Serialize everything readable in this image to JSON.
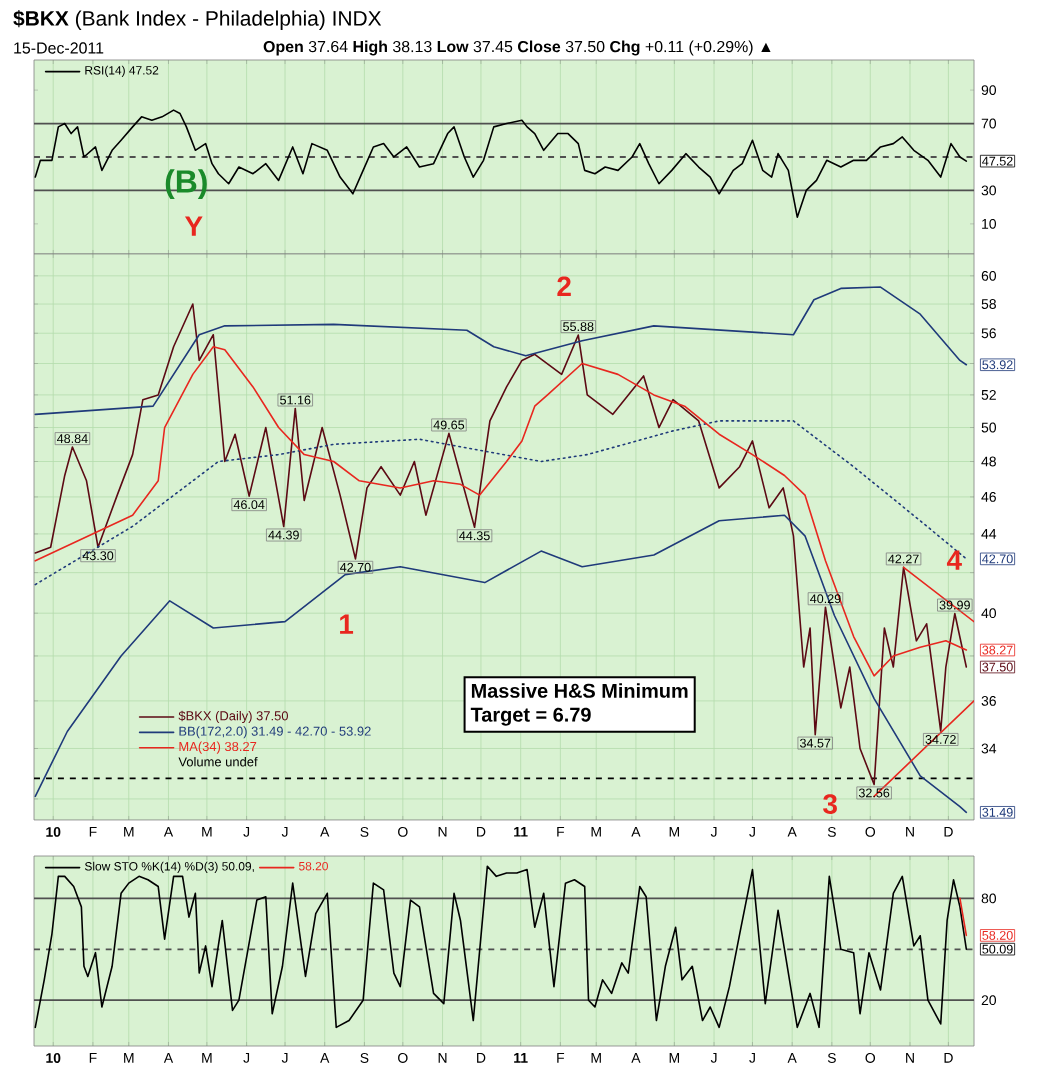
{
  "chart_data": [
    {
      "type": "line",
      "title": "**$BKX** (Bank Index - Philadelphia) INDX",
      "subtitle": "15-Dec-2011",
      "grid": "x",
      "legend": "top left",
      "tick_labels": "y",
      "xlim": [
        "2009-12-17",
        "2011-12-21"
      ],
      "ylim": [
        -8,
        108
      ],
      "xticks": [
        {
          "value": "2010-01-01",
          "label": null
        },
        {
          "value": "2010-02-01",
          "label": null
        },
        {
          "value": "2010-03-01",
          "label": null
        },
        {
          "value": "2010-04-01",
          "label": null
        },
        {
          "value": "2010-05-01",
          "label": null
        },
        {
          "value": "2010-06-01",
          "label": null
        },
        {
          "value": "2010-07-01",
          "label": null
        },
        {
          "value": "2010-08-01",
          "label": null
        },
        {
          "value": "2010-09-01",
          "label": null
        },
        {
          "value": "2010-10-01",
          "label": null
        },
        {
          "value": "2010-11-01",
          "label": null
        },
        {
          "value": "2010-12-01",
          "label": null
        },
        {
          "value": "2011-01-01",
          "label": null
        },
        {
          "value": "2011-02-01",
          "label": null
        },
        {
          "value": "2011-03-01",
          "label": null
        },
        {
          "value": "2011-04-01",
          "label": null
        },
        {
          "value": "2011-05-01",
          "label": null
        },
        {
          "value": "2011-06-01",
          "label": null
        },
        {
          "value": "2011-07-01",
          "label": null
        },
        {
          "value": "2011-08-01",
          "label": null
        },
        {
          "value": "2011-09-01",
          "label": null
        },
        {
          "value": "2011-10-01",
          "label": null
        },
        {
          "value": "2011-11-01",
          "label": null
        },
        {
          "value": "2011-12-01",
          "label": null
        }
      ],
      "yticks": [
        10,
        30,
        70,
        90
      ],
      "x": [
        "2009-12-18",
        "2009-12-22",
        "2009-12-31",
        "2010-01-05",
        "2010-01-10",
        "2010-01-15",
        "2010-01-20",
        "2010-01-25",
        "2010-02-03",
        "2010-02-08",
        "2010-02-16",
        "2010-02-23",
        "2010-03-04",
        "2010-03-11",
        "2010-03-19",
        "2010-03-27",
        "2010-04-05",
        "2010-04-10",
        "2010-04-15",
        "2010-04-22",
        "2010-04-30",
        "2010-05-05",
        "2010-05-10",
        "2010-05-18",
        "2010-05-26",
        "2010-06-06",
        "2010-06-16",
        "2010-06-26",
        "2010-07-07",
        "2010-07-15",
        "2010-07-22",
        "2010-08-03",
        "2010-08-13",
        "2010-08-23",
        "2010-08-31",
        "2010-09-08",
        "2010-09-16",
        "2010-09-24",
        "2010-10-04",
        "2010-10-14",
        "2010-10-25",
        "2010-11-05",
        "2010-11-10",
        "2010-11-18",
        "2010-11-25",
        "2010-12-03",
        "2010-12-11",
        "2010-12-21",
        "2011-01-02",
        "2011-01-06",
        "2011-01-12",
        "2011-01-19",
        "2011-01-30",
        "2011-02-07",
        "2011-02-15",
        "2011-02-20",
        "2011-02-28",
        "2011-03-08",
        "2011-03-18",
        "2011-03-29",
        "2011-04-04",
        "2011-04-11",
        "2011-04-19",
        "2011-04-29",
        "2011-05-10",
        "2011-05-20",
        "2011-05-29",
        "2011-06-05",
        "2011-06-16",
        "2011-06-23",
        "2011-07-01",
        "2011-07-09",
        "2011-07-16",
        "2011-07-21",
        "2011-07-29",
        "2011-08-05",
        "2011-08-12",
        "2011-08-20",
        "2011-08-28",
        "2011-09-08",
        "2011-09-18",
        "2011-09-28",
        "2011-10-09",
        "2011-10-19",
        "2011-10-26",
        "2011-11-04",
        "2011-11-15",
        "2011-11-25",
        "2011-12-03",
        "2011-12-10",
        "2011-12-15"
      ],
      "series": [
        {
          "name": "RSI(14) 47.52",
          "color": "#000000",
          "values": [
            38,
            48,
            48,
            68,
            70,
            64,
            68,
            50,
            56,
            42,
            54,
            60,
            68,
            74,
            72,
            74,
            78,
            76,
            68,
            54,
            58,
            46,
            40,
            34,
            44,
            40,
            46,
            36,
            56,
            40,
            58,
            54,
            38,
            28,
            42,
            56,
            58,
            50,
            56,
            44,
            46,
            64,
            68,
            50,
            38,
            48,
            68,
            70,
            72,
            68,
            64,
            54,
            64,
            64,
            58,
            42,
            40,
            44,
            42,
            50,
            58,
            46,
            34,
            42,
            52,
            44,
            38,
            28,
            42,
            46,
            60,
            42,
            38,
            52,
            42,
            14,
            30,
            36,
            48,
            44,
            48,
            48,
            56,
            58,
            62,
            54,
            48,
            38,
            58,
            50,
            47.52
          ],
          "value_labels": [
            null,
            null,
            null,
            null,
            null,
            null,
            null,
            null,
            null,
            null,
            null,
            null,
            null,
            null,
            null,
            null,
            null,
            null,
            null,
            null,
            null,
            null,
            null,
            null,
            null,
            null,
            null,
            null,
            null,
            null,
            null,
            null,
            null,
            null,
            null,
            null,
            null,
            null,
            null,
            null,
            null,
            null,
            null,
            null,
            null,
            null,
            null,
            null,
            null,
            null,
            null,
            null,
            null,
            null,
            null,
            null,
            null,
            null,
            null,
            null,
            null,
            null,
            null,
            null,
            null,
            null,
            null,
            null,
            null,
            null,
            null,
            null,
            null,
            null,
            null,
            null,
            null,
            null,
            null,
            null,
            null,
            null,
            null,
            null,
            null,
            null,
            null,
            null,
            null,
            null,
            "47.52"
          ]
        }
      ],
      "ref_lines": [
        {
          "axis": "y",
          "value": 70,
          "color": "#505050",
          "line_style": "solid"
        },
        {
          "axis": "y",
          "value": 30,
          "color": "#505050",
          "line_style": "solid"
        },
        {
          "axis": "y",
          "value": 50,
          "color": "#505050",
          "line_style": "dashed"
        }
      ],
      "annotations": [
        "**Open** 37.64 **High** 38.13 **Low** 37.45 **Close** 37.50 **Chg** +0.11 (+0.29%) ▲",
        "(B)",
        "Y"
      ]
    },
    {
      "type": "line",
      "log": "y",
      "grid": true,
      "legend": "bottom left",
      "xlim": [
        "2009-12-17",
        "2011-12-21"
      ],
      "ylim": [
        31.2,
        61.6
      ],
      "xticks": [
        {
          "value": "2010-01-01",
          "label": "10"
        },
        {
          "value": "2010-02-01",
          "label": "F"
        },
        {
          "value": "2010-03-01",
          "label": "M"
        },
        {
          "value": "2010-04-01",
          "label": "A"
        },
        {
          "value": "2010-05-01",
          "label": "M"
        },
        {
          "value": "2010-06-01",
          "label": "J"
        },
        {
          "value": "2010-07-01",
          "label": "J"
        },
        {
          "value": "2010-08-01",
          "label": "A"
        },
        {
          "value": "2010-09-01",
          "label": "S"
        },
        {
          "value": "2010-10-01",
          "label": "O"
        },
        {
          "value": "2010-11-01",
          "label": "N"
        },
        {
          "value": "2010-12-01",
          "label": "D"
        },
        {
          "value": "2011-01-01",
          "label": "11"
        },
        {
          "value": "2011-02-01",
          "label": "F"
        },
        {
          "value": "2011-03-01",
          "label": "M"
        },
        {
          "value": "2011-04-01",
          "label": "A"
        },
        {
          "value": "2011-05-01",
          "label": "M"
        },
        {
          "value": "2011-06-01",
          "label": "J"
        },
        {
          "value": "2011-07-01",
          "label": "J"
        },
        {
          "value": "2011-08-01",
          "label": "A"
        },
        {
          "value": "2011-09-01",
          "label": "S"
        },
        {
          "value": "2011-10-01",
          "label": "O"
        },
        {
          "value": "2011-11-01",
          "label": "N"
        },
        {
          "value": "2011-12-01",
          "label": "D"
        }
      ],
      "yticks": [
        {
          "value": 32,
          "label": null
        },
        34,
        36,
        {
          "value": 38,
          "label": null
        },
        40,
        {
          "value": 42,
          "label": null
        },
        44,
        46,
        48,
        50,
        52,
        {
          "value": 54,
          "label": null
        },
        56,
        58,
        60
      ],
      "series": [
        {
          "name": "$BKX (Daily) 37.50",
          "color": "#5c0a14",
          "x": [
            "2009-12-18",
            "2009-12-30",
            "2010-01-10",
            "2010-01-16",
            "2010-01-27",
            "2010-02-05",
            "2010-02-20",
            "2010-03-04",
            "2010-03-12",
            "2010-03-24",
            "2010-04-05",
            "2010-04-20",
            "2010-04-25",
            "2010-05-06",
            "2010-05-15",
            "2010-05-23",
            "2010-06-03",
            "2010-06-16",
            "2010-06-30",
            "2010-07-09",
            "2010-07-16",
            "2010-07-30",
            "2010-08-13",
            "2010-08-25",
            "2010-09-03",
            "2010-09-14",
            "2010-09-29",
            "2010-10-10",
            "2010-10-19",
            "2010-11-06",
            "2010-11-15",
            "2010-11-26",
            "2010-12-08",
            "2010-12-21",
            "2011-01-02",
            "2011-01-12",
            "2011-02-02",
            "2011-02-15",
            "2011-02-22",
            "2011-03-14",
            "2011-04-07",
            "2011-04-19",
            "2011-04-30",
            "2011-05-20",
            "2011-06-05",
            "2011-06-21",
            "2011-07-01",
            "2011-07-14",
            "2011-07-25",
            "2011-08-02",
            "2011-08-10",
            "2011-08-15",
            "2011-08-19",
            "2011-08-27",
            "2011-09-08",
            "2011-09-15",
            "2011-09-23",
            "2011-10-04",
            "2011-10-12",
            "2011-10-19",
            "2011-10-27",
            "2011-11-06",
            "2011-11-14",
            "2011-11-25",
            "2011-11-29",
            "2011-12-06",
            "2011-12-15"
          ],
          "values": [
            43.0,
            43.3,
            47.2,
            48.84,
            46.9,
            43.3,
            46.1,
            48.4,
            51.7,
            52.0,
            55.1,
            58.0,
            54.2,
            55.9,
            48.0,
            49.6,
            46.04,
            50.0,
            44.39,
            51.16,
            45.8,
            50.0,
            46.1,
            42.7,
            46.5,
            47.7,
            46.1,
            48.0,
            45.0,
            49.65,
            47.2,
            44.35,
            50.4,
            52.5,
            54.2,
            54.6,
            53.3,
            55.88,
            52.0,
            50.8,
            53.2,
            50.0,
            51.7,
            50.4,
            46.5,
            47.7,
            49.2,
            45.4,
            46.5,
            43.9,
            37.5,
            39.3,
            34.57,
            40.29,
            35.7,
            37.5,
            34.0,
            32.56,
            39.3,
            37.5,
            42.27,
            38.7,
            39.5,
            34.72,
            37.5,
            39.99,
            37.5
          ],
          "value_labels": [
            null,
            null,
            null,
            "48.84",
            null,
            "43.30",
            null,
            null,
            null,
            null,
            null,
            null,
            null,
            null,
            null,
            null,
            "46.04",
            null,
            "44.39",
            "51.16",
            null,
            null,
            null,
            "42.70",
            null,
            null,
            null,
            null,
            null,
            "49.65",
            null,
            "44.35",
            null,
            null,
            null,
            null,
            null,
            "55.88",
            null,
            null,
            null,
            null,
            null,
            null,
            null,
            null,
            null,
            null,
            null,
            null,
            null,
            null,
            "34.57",
            "40.29",
            null,
            null,
            null,
            "32.56",
            null,
            null,
            "42.27",
            null,
            null,
            "34.72",
            null,
            "39.99",
            "37.50"
          ]
        },
        {
          "name": "BB(172,2.0) 31.49 - 42.70 - 53.92",
          "color": "#1f3a7a",
          "x": [
            "2009-12-18",
            "2010-03-20",
            "2010-04-25",
            "2010-05-15",
            "2010-08-08",
            "2010-11-20",
            "2010-12-11",
            "2011-01-05",
            "2011-02-18",
            "2011-04-15",
            "2011-08-02",
            "2011-08-18",
            "2011-09-08",
            "2011-10-09",
            "2011-11-09",
            "2011-12-10",
            "2011-12-15"
          ],
          "values": [
            50.8,
            51.3,
            55.9,
            56.5,
            56.6,
            56.2,
            55.1,
            54.5,
            55.5,
            56.5,
            55.9,
            58.3,
            59.1,
            59.2,
            57.3,
            54.2,
            53.92
          ],
          "value_labels": [
            null,
            null,
            null,
            null,
            null,
            null,
            null,
            null,
            null,
            null,
            null,
            null,
            null,
            null,
            null,
            null,
            "53.92"
          ]
        },
        {
          "color": "#1f3a7a",
          "line_style": "dotted",
          "x": [
            "2009-12-18",
            "2010-03-04",
            "2010-05-10",
            "2010-06-26",
            "2010-08-08",
            "2010-10-14",
            "2011-01-17",
            "2011-02-22",
            "2011-04-30",
            "2011-06-05",
            "2011-08-02",
            "2011-09-18",
            "2011-11-09",
            "2011-12-15"
          ],
          "values": [
            41.4,
            44.4,
            48.0,
            48.4,
            49.0,
            49.3,
            48.0,
            48.4,
            49.8,
            50.4,
            50.4,
            47.7,
            44.7,
            42.7
          ],
          "value_labels": [
            null,
            null,
            null,
            null,
            null,
            null,
            null,
            null,
            null,
            null,
            null,
            null,
            null,
            "42.70"
          ]
        },
        {
          "color": "#1f3a7a",
          "x": [
            "2009-12-18",
            "2010-01-12",
            "2010-02-23",
            "2010-04-02",
            "2010-05-06",
            "2010-07-01",
            "2010-08-17",
            "2010-09-29",
            "2010-12-04",
            "2011-01-17",
            "2011-02-18",
            "2011-04-15",
            "2011-06-05",
            "2011-07-26",
            "2011-08-11",
            "2011-09-03",
            "2011-10-04",
            "2011-11-09",
            "2011-12-10",
            "2011-12-15"
          ],
          "values": [
            32.1,
            34.7,
            38.0,
            40.6,
            39.3,
            39.6,
            41.9,
            42.3,
            41.5,
            43.1,
            42.3,
            42.9,
            44.7,
            45.0,
            43.9,
            39.9,
            36.1,
            32.9,
            31.7,
            31.49
          ],
          "value_labels": [
            null,
            null,
            null,
            null,
            null,
            null,
            null,
            null,
            null,
            null,
            null,
            null,
            null,
            null,
            null,
            null,
            null,
            null,
            null,
            "31.49"
          ]
        },
        {
          "name": "MA(34) 38.27",
          "color": "#e8271f",
          "x": [
            "2009-12-18",
            "2010-03-04",
            "2010-03-24",
            "2010-03-29",
            "2010-04-20",
            "2010-05-06",
            "2010-05-15",
            "2010-06-06",
            "2010-06-26",
            "2010-07-16",
            "2010-08-08",
            "2010-08-28",
            "2010-09-29",
            "2010-10-25",
            "2010-11-15",
            "2010-11-30",
            "2010-12-21",
            "2011-01-02",
            "2011-01-12",
            "2011-01-22",
            "2011-02-18",
            "2011-03-18",
            "2011-04-15",
            "2011-05-09",
            "2011-06-05",
            "2011-07-01",
            "2011-07-26",
            "2011-08-11",
            "2011-08-27",
            "2011-09-18",
            "2011-10-04",
            "2011-10-19",
            "2011-11-09",
            "2011-11-29",
            "2011-12-15"
          ],
          "values": [
            42.6,
            45.0,
            46.9,
            50.0,
            53.3,
            55.1,
            54.9,
            52.5,
            50.0,
            48.4,
            48.0,
            46.9,
            46.5,
            46.9,
            46.7,
            46.1,
            48.0,
            49.2,
            51.3,
            52.0,
            54.0,
            53.3,
            52.0,
            51.3,
            49.6,
            48.4,
            47.2,
            46.1,
            42.6,
            38.9,
            37.1,
            38.0,
            38.4,
            38.7,
            38.27
          ],
          "value_labels": [
            null,
            null,
            null,
            null,
            null,
            null,
            null,
            null,
            null,
            null,
            null,
            null,
            null,
            null,
            null,
            null,
            null,
            null,
            null,
            null,
            null,
            null,
            null,
            null,
            null,
            null,
            null,
            null,
            null,
            null,
            null,
            null,
            null,
            null,
            "38.27"
          ]
        },
        {
          "type": "line",
          "color": "#e8271f",
          "x": [
            "2011-10-27",
            "2011-12-21"
          ],
          "values": [
            42.27,
            39.6
          ]
        },
        {
          "type": "line",
          "color": "#e8271f",
          "x": [
            "2011-10-04",
            "2011-12-21"
          ],
          "values": [
            32.1,
            36.0
          ]
        }
      ],
      "ref_lines": [
        {
          "axis": "y",
          "value": 32.8,
          "color": "#000000",
          "line_style": "dashed"
        }
      ],
      "annotations": [
        "Volume undef",
        "Massive H&S Minimum",
        "Target = 6.79",
        "2",
        "1",
        "3",
        "4"
      ]
    },
    {
      "type": "line",
      "grid": "x",
      "legend": "top left",
      "xlim": [
        "2009-12-17",
        "2011-12-21"
      ],
      "ylim": [
        -7,
        105
      ],
      "xticks": [
        {
          "value": "2010-01-01",
          "label": "10"
        },
        {
          "value": "2010-02-01",
          "label": "F"
        },
        {
          "value": "2010-03-01",
          "label": "M"
        },
        {
          "value": "2010-04-01",
          "label": "A"
        },
        {
          "value": "2010-05-01",
          "label": "M"
        },
        {
          "value": "2010-06-01",
          "label": "J"
        },
        {
          "value": "2010-07-01",
          "label": "J"
        },
        {
          "value": "2010-08-01",
          "label": "A"
        },
        {
          "value": "2010-09-01",
          "label": "S"
        },
        {
          "value": "2010-10-01",
          "label": "O"
        },
        {
          "value": "2010-11-01",
          "label": "N"
        },
        {
          "value": "2010-12-01",
          "label": "D"
        },
        {
          "value": "2011-01-01",
          "label": "11"
        },
        {
          "value": "2011-02-01",
          "label": "F"
        },
        {
          "value": "2011-03-01",
          "label": "M"
        },
        {
          "value": "2011-04-01",
          "label": "A"
        },
        {
          "value": "2011-05-01",
          "label": "M"
        },
        {
          "value": "2011-06-01",
          "label": "J"
        },
        {
          "value": "2011-07-01",
          "label": "J"
        },
        {
          "value": "2011-08-01",
          "label": "A"
        },
        {
          "value": "2011-09-01",
          "label": "S"
        },
        {
          "value": "2011-10-01",
          "label": "O"
        },
        {
          "value": "2011-11-01",
          "label": "N"
        },
        {
          "value": "2011-12-01",
          "label": "D"
        }
      ],
      "yticks": [
        20,
        80
      ],
      "x": [
        "2009-12-18",
        "2009-12-25",
        "2009-12-31",
        "2010-01-05",
        "2010-01-10",
        "2010-01-17",
        "2010-01-23",
        "2010-01-25",
        "2010-01-28",
        "2010-02-03",
        "2010-02-08",
        "2010-02-16",
        "2010-02-23",
        "2010-03-01",
        "2010-03-09",
        "2010-03-16",
        "2010-03-24",
        "2010-03-29",
        "2010-04-05",
        "2010-04-12",
        "2010-04-17",
        "2010-04-22",
        "2010-04-25",
        "2010-04-30",
        "2010-05-05",
        "2010-05-13",
        "2010-05-21",
        "2010-05-26",
        "2010-06-09",
        "2010-06-16",
        "2010-06-21",
        "2010-06-29",
        "2010-07-07",
        "2010-07-17",
        "2010-07-25",
        "2010-08-03",
        "2010-08-10",
        "2010-08-20",
        "2010-08-31",
        "2010-09-08",
        "2010-09-16",
        "2010-09-24",
        "2010-09-29",
        "2010-10-07",
        "2010-10-14",
        "2010-10-25",
        "2010-11-02",
        "2010-11-10",
        "2010-11-15",
        "2010-11-25",
        "2010-12-06",
        "2010-12-13",
        "2010-12-21",
        "2010-12-29",
        "2011-01-06",
        "2011-01-12",
        "2011-01-19",
        "2011-01-27",
        "2011-02-05",
        "2011-02-12",
        "2011-02-20",
        "2011-02-23",
        "2011-02-28",
        "2011-03-06",
        "2011-03-13",
        "2011-03-21",
        "2011-03-26",
        "2011-04-04",
        "2011-04-09",
        "2011-04-17",
        "2011-04-24",
        "2011-05-02",
        "2011-05-07",
        "2011-05-15",
        "2011-05-23",
        "2011-05-29",
        "2011-06-05",
        "2011-06-13",
        "2011-06-21",
        "2011-07-01",
        "2011-07-11",
        "2011-07-21",
        "2011-08-05",
        "2011-08-15",
        "2011-08-22",
        "2011-08-30",
        "2011-09-08",
        "2011-09-18",
        "2011-09-23",
        "2011-09-30",
        "2011-10-09",
        "2011-10-19",
        "2011-10-26",
        "2011-11-04",
        "2011-11-09",
        "2011-11-15",
        "2011-11-25",
        "2011-11-30",
        "2011-12-05",
        "2011-12-10",
        "2011-12-15"
      ],
      "series": [
        {
          "name": "Slow STO %K(14) %D(3) 50.09,",
          "color": "#000000",
          "values": [
            4,
            32,
            59,
            93,
            93,
            87,
            75,
            40,
            34,
            48,
            16,
            40,
            83,
            89,
            93,
            91,
            87,
            56,
            93,
            93,
            69,
            83,
            36,
            52,
            28,
            67,
            14,
            20,
            79,
            81,
            12,
            40,
            89,
            34,
            71,
            83,
            4,
            8,
            20,
            89,
            85,
            36,
            28,
            79,
            75,
            24,
            18,
            83,
            67,
            8,
            99,
            93,
            95,
            95,
            97,
            63,
            83,
            28,
            89,
            91,
            87,
            20,
            16,
            32,
            24,
            42,
            36,
            87,
            81,
            8,
            40,
            63,
            32,
            40,
            8,
            16,
            4,
            28,
            59,
            97,
            18,
            73,
            4,
            24,
            4,
            93,
            50,
            48,
            12,
            48,
            26,
            83,
            93,
            52,
            58,
            20,
            6,
            67,
            91,
            75,
            50.09
          ],
          "value_labels": [
            null,
            null,
            null,
            null,
            null,
            null,
            null,
            null,
            null,
            null,
            null,
            null,
            null,
            null,
            null,
            null,
            null,
            null,
            null,
            null,
            null,
            null,
            null,
            null,
            null,
            null,
            null,
            null,
            null,
            null,
            null,
            null,
            null,
            null,
            null,
            null,
            null,
            null,
            null,
            null,
            null,
            null,
            null,
            null,
            null,
            null,
            null,
            null,
            null,
            null,
            null,
            null,
            null,
            null,
            null,
            null,
            null,
            null,
            null,
            null,
            null,
            null,
            null,
            null,
            null,
            null,
            null,
            null,
            null,
            null,
            null,
            null,
            null,
            null,
            null,
            null,
            null,
            null,
            null,
            null,
            null,
            null,
            null,
            null,
            null,
            null,
            null,
            null,
            null,
            null,
            null,
            null,
            null,
            null,
            null,
            null,
            null,
            null,
            null,
            null,
            "50.09"
          ]
        },
        {
          "name": "58.20",
          "color": "#e8271f",
          "values": [
            null,
            null,
            null,
            null,
            null,
            null,
            null,
            null,
            null,
            null,
            null,
            null,
            null,
            null,
            null,
            null,
            null,
            null,
            null,
            null,
            null,
            null,
            null,
            null,
            null,
            null,
            null,
            null,
            null,
            null,
            null,
            null,
            null,
            null,
            null,
            null,
            null,
            null,
            null,
            null,
            null,
            null,
            null,
            null,
            null,
            null,
            null,
            null,
            null,
            null,
            null,
            null,
            null,
            null,
            null,
            null,
            null,
            null,
            null,
            null,
            null,
            null,
            null,
            null,
            null,
            null,
            null,
            null,
            null,
            null,
            null,
            null,
            null,
            null,
            null,
            null,
            null,
            null,
            null,
            null,
            null,
            null,
            null,
            null,
            null,
            null,
            null,
            null,
            null,
            null,
            null,
            null,
            null,
            null,
            null,
            null,
            null,
            null,
            null,
            80,
            58.2
          ],
          "value_labels": [
            null,
            null,
            null,
            null,
            null,
            null,
            null,
            null,
            null,
            null,
            null,
            null,
            null,
            null,
            null,
            null,
            null,
            null,
            null,
            null,
            null,
            null,
            null,
            null,
            null,
            null,
            null,
            null,
            null,
            null,
            null,
            null,
            null,
            null,
            null,
            null,
            null,
            null,
            null,
            null,
            null,
            null,
            null,
            null,
            null,
            null,
            null,
            null,
            null,
            null,
            null,
            null,
            null,
            null,
            null,
            null,
            null,
            null,
            null,
            null,
            null,
            null,
            null,
            null,
            null,
            null,
            null,
            null,
            null,
            null,
            null,
            null,
            null,
            null,
            null,
            null,
            null,
            null,
            null,
            null,
            null,
            null,
            null,
            null,
            null,
            null,
            null,
            null,
            null,
            null,
            null,
            null,
            null,
            null,
            null,
            null,
            null,
            null,
            null,
            null,
            "58.20"
          ]
        }
      ],
      "ref_lines": [
        {
          "axis": "y",
          "value": 80,
          "color": "#505050",
          "line_style": "solid"
        },
        {
          "axis": "y",
          "value": 20,
          "color": "#505050",
          "line_style": "solid"
        },
        {
          "axis": "y",
          "value": 50,
          "color": "#505050",
          "line_style": "dashed"
        }
      ]
    }
  ]
}
